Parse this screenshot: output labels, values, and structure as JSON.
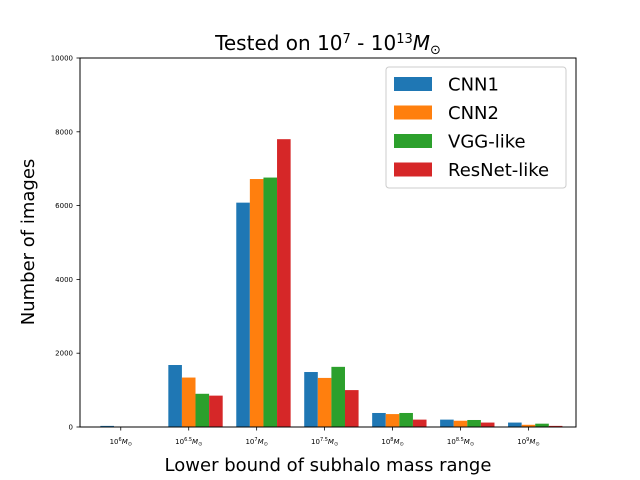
{
  "chart_data": {
    "type": "bar",
    "title": {
      "prefix": "Tested on 10",
      "exp1": "7",
      "mid": " - 10",
      "exp2": "13",
      "unit": "M",
      "unit_sub": "⊙"
    },
    "xlabel": "Lower bound of subhalo mass range",
    "ylabel": "Number of images",
    "ylim": [
      0,
      10000
    ],
    "yticks": [
      "0",
      "2000",
      "4000",
      "6000",
      "8000",
      "10000"
    ],
    "categories": [
      {
        "base": "10",
        "exp": "6",
        "unit": "M",
        "sub": "⊙"
      },
      {
        "base": "10",
        "exp": "6.5",
        "unit": "M",
        "sub": "⊙"
      },
      {
        "base": "10",
        "exp": "7",
        "unit": "M",
        "sub": "⊙"
      },
      {
        "base": "10",
        "exp": "7.5",
        "unit": "M",
        "sub": "⊙"
      },
      {
        "base": "10",
        "exp": "8",
        "unit": "M",
        "sub": "⊙"
      },
      {
        "base": "10",
        "exp": "8.5",
        "unit": "M",
        "sub": "⊙"
      },
      {
        "base": "10",
        "exp": "9",
        "unit": "M",
        "sub": "⊙"
      }
    ],
    "series": [
      {
        "name": "CNN1",
        "color": "#1f77b4",
        "values": [
          30,
          1680,
          6080,
          1490,
          380,
          200,
          120
        ]
      },
      {
        "name": "CNN2",
        "color": "#ff7f0e",
        "values": [
          0,
          1340,
          6720,
          1330,
          350,
          170,
          60
        ]
      },
      {
        "name": "VGG-like",
        "color": "#2ca02c",
        "values": [
          0,
          900,
          6760,
          1630,
          380,
          190,
          90
        ]
      },
      {
        "name": "ResNet-like",
        "color": "#d62728",
        "values": [
          0,
          850,
          7800,
          1000,
          200,
          120,
          30
        ]
      }
    ],
    "legend": {
      "position": "upper right"
    }
  }
}
